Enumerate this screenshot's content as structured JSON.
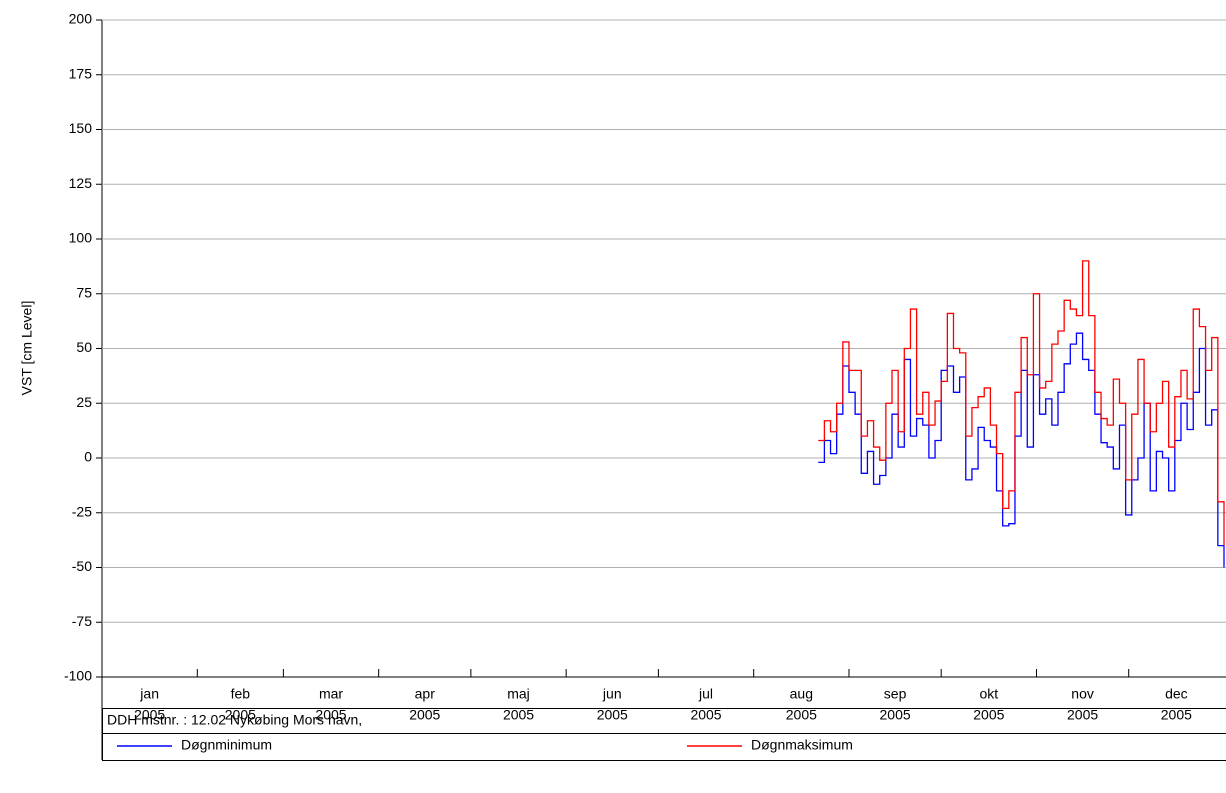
{
  "chart_data": {
    "type": "step",
    "ylabel": "VST [cm Level]",
    "footer": "DDH mstnr. : 12.02 Nykøbing Mors havn,",
    "xlim": [
      0,
      365
    ],
    "xticks": [
      {
        "value": 0,
        "label": "jan"
      },
      {
        "value": 31,
        "label": "feb"
      },
      {
        "value": 59,
        "label": "mar"
      },
      {
        "value": 90,
        "label": "apr"
      },
      {
        "value": 120,
        "label": "maj"
      },
      {
        "value": 151,
        "label": "jun"
      },
      {
        "value": 181,
        "label": "jul"
      },
      {
        "value": 212,
        "label": "aug"
      },
      {
        "value": 243,
        "label": "sep"
      },
      {
        "value": 273,
        "label": "okt"
      },
      {
        "value": 304,
        "label": "nov"
      },
      {
        "value": 334,
        "label": "dec"
      }
    ],
    "xtick_years": [
      "2005",
      "2005",
      "2005",
      "2005",
      "2005",
      "2005",
      "2005",
      "2005",
      "2005",
      "2005",
      "2005",
      "2005"
    ],
    "ylim": [
      -100,
      200
    ],
    "yticks": [
      -100,
      -75,
      -50,
      -25,
      0,
      25,
      50,
      75,
      100,
      125,
      150,
      175,
      200
    ],
    "grid": true,
    "x": [
      233,
      235,
      237,
      239,
      241,
      243,
      245,
      247,
      249,
      251,
      253,
      255,
      257,
      259,
      261,
      263,
      265,
      267,
      269,
      271,
      273,
      275,
      277,
      279,
      281,
      283,
      285,
      287,
      289,
      291,
      293,
      295,
      297,
      299,
      301,
      303,
      305,
      307,
      309,
      311,
      313,
      315,
      317,
      319,
      321,
      323,
      325,
      327,
      329,
      331,
      333,
      335,
      337,
      339,
      341,
      343,
      345,
      347,
      349,
      351,
      353,
      355,
      357,
      359,
      361,
      363,
      365
    ],
    "series": [
      {
        "name": "Døgnminimum",
        "color": "#0000ff",
        "values": [
          -2,
          8,
          2,
          20,
          42,
          30,
          20,
          -7,
          3,
          -12,
          -8,
          0,
          20,
          5,
          45,
          10,
          18,
          15,
          0,
          8,
          40,
          42,
          30,
          37,
          -10,
          -5,
          14,
          8,
          5,
          -15,
          -31,
          -30,
          10,
          40,
          5,
          38,
          20,
          27,
          15,
          30,
          43,
          52,
          57,
          45,
          40,
          20,
          7,
          5,
          -5,
          15,
          -26,
          -10,
          0,
          25,
          -15,
          3,
          0,
          -15,
          8,
          25,
          13,
          30,
          50,
          15,
          22,
          -40,
          -50
        ]
      },
      {
        "name": "Døgnmaksimum",
        "color": "#ff0000",
        "values": [
          8,
          17,
          12,
          25,
          53,
          40,
          40,
          10,
          17,
          5,
          -1,
          25,
          40,
          12,
          50,
          68,
          20,
          30,
          15,
          26,
          35,
          66,
          50,
          48,
          10,
          23,
          28,
          32,
          15,
          2,
          -23,
          -15,
          30,
          55,
          38,
          75,
          32,
          35,
          52,
          58,
          72,
          68,
          65,
          90,
          65,
          30,
          18,
          15,
          36,
          25,
          -10,
          20,
          45,
          25,
          12,
          25,
          35,
          5,
          28,
          40,
          27,
          68,
          60,
          40,
          55,
          -20,
          -40
        ]
      }
    ]
  }
}
